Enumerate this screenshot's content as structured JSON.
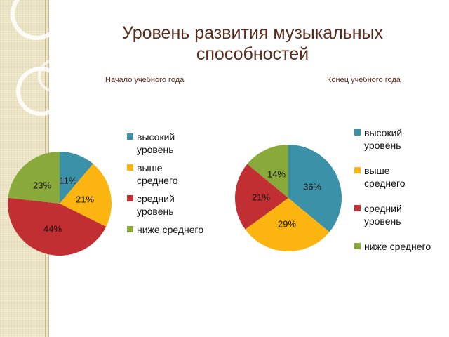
{
  "title": "Уровень развития музыкальных способностей",
  "colors": {
    "title": "#5a2d1e",
    "series": [
      "#3a91a8",
      "#fcb510",
      "#c22f32",
      "#89a93a"
    ],
    "background_band": "#ece3c4"
  },
  "chart_data": [
    {
      "type": "pie",
      "title": "Начало учебного года",
      "categories": [
        "высокий уровень",
        "выше среднего",
        "средний уровень",
        "ниже среднего"
      ],
      "values": [
        11,
        21,
        44,
        23
      ],
      "labels": [
        "11%",
        "21%",
        "44%",
        "23%"
      ],
      "legend": {
        "position": "right",
        "entries": [
          "высокий уровень",
          "выше среднего",
          "средний уровень",
          "ниже среднего"
        ]
      }
    },
    {
      "type": "pie",
      "title": "Конец учебного года",
      "categories": [
        "высокий уровень",
        "выше среднего",
        "средний уровень",
        "ниже среднего"
      ],
      "values": [
        36,
        29,
        21,
        14
      ],
      "labels": [
        "36%",
        "29%",
        "21%",
        "14%"
      ],
      "legend": {
        "position": "right",
        "entries": [
          "высокий уровень",
          "выше среднего",
          "средний уровень",
          "ниже среднего"
        ]
      }
    }
  ]
}
